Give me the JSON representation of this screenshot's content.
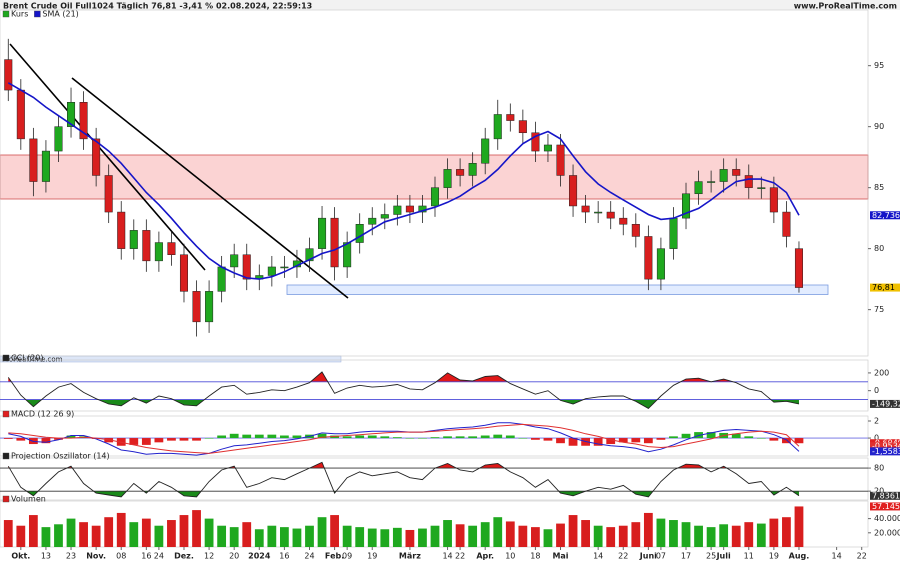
{
  "header": {
    "title": "Brent Crude Oil Full1024 Täglich 76,81 -3,41 % 02.08.2024, 22:59:13",
    "source": "www.ProRealTime.com"
  },
  "chart_data": [
    {
      "type": "candlestick",
      "watermark": "ProRealTime.com",
      "categories": [
        null,
        "Okt.",
        null,
        "13",
        null,
        "23",
        null,
        "Nov.",
        null,
        "08",
        null,
        "16",
        "24",
        null,
        "Dez.",
        null,
        "12",
        null,
        "20",
        null,
        "2024",
        null,
        "16",
        null,
        "24",
        null,
        "Feb.",
        "09",
        null,
        "19",
        null,
        null,
        "März",
        null,
        null,
        "14",
        "22",
        null,
        "Apr.",
        null,
        "10",
        null,
        "18",
        null,
        "Mai",
        null,
        null,
        "14",
        null,
        "22",
        null,
        "Juni",
        "07",
        null,
        "17",
        null,
        "25",
        "Juli",
        null,
        "11",
        null,
        "19",
        null,
        "Aug.",
        null,
        null,
        "14",
        null,
        "22"
      ],
      "ylim": [
        71.2,
        99.4
      ],
      "yticks": [
        95,
        90,
        85,
        80,
        75
      ],
      "series": [
        {
          "name": "Kurs",
          "up_color": "#1fa81f",
          "down_color": "#d81e1e",
          "open": [
            95.5,
            93,
            89,
            85.5,
            88,
            90,
            92,
            89,
            86,
            83,
            80,
            81.5,
            79,
            80.5,
            79.5,
            76.5,
            74,
            76.5,
            78.5,
            79.5,
            77.5,
            77.8,
            78.5,
            78.5,
            79,
            80,
            82.5,
            78.5,
            80.5,
            82,
            82.5,
            82.8,
            83.5,
            83,
            83.5,
            85,
            86.5,
            86,
            87,
            89,
            91,
            90.5,
            89.5,
            88,
            88.5,
            86,
            83.5,
            83,
            83,
            82.5,
            82,
            81,
            77.5,
            80,
            82.5,
            84.5,
            85.5,
            85.5,
            86.5,
            86,
            85,
            85,
            83,
            80,
            null,
            null,
            null,
            null,
            null
          ],
          "high": [
            97.2,
            93.9,
            89.9,
            88.9,
            90.9,
            93.2,
            92.9,
            89.9,
            86.9,
            83.9,
            82.4,
            82.4,
            81.4,
            81.4,
            80.4,
            77.4,
            77.4,
            79.4,
            80.4,
            80.4,
            78.7,
            79.4,
            79.4,
            79.9,
            80.9,
            83.5,
            83.4,
            81.4,
            82.9,
            83.4,
            83.7,
            84.4,
            84.4,
            84.4,
            85.9,
            87.4,
            87.4,
            87.9,
            89.9,
            92.2,
            91.9,
            91.4,
            90.4,
            89.4,
            89.4,
            86.9,
            84.4,
            83.9,
            83.9,
            83.4,
            82.9,
            81.9,
            80.9,
            83.4,
            85.4,
            86.4,
            86.4,
            87.4,
            87.4,
            86.9,
            85.9,
            85.9,
            83.9,
            80.6,
            null,
            null,
            null,
            null,
            null
          ],
          "low": [
            92.1,
            88.1,
            84.3,
            84.6,
            87.1,
            89.1,
            88.1,
            85.1,
            82.1,
            79.1,
            79.1,
            78.1,
            78.1,
            78.6,
            75.6,
            72.8,
            73.1,
            75.6,
            77.6,
            76.6,
            76.6,
            76.9,
            77.6,
            77.6,
            78.1,
            79.1,
            77.4,
            77.6,
            79.6,
            81.1,
            81.6,
            81.9,
            82.1,
            82.1,
            82.6,
            84.1,
            85.1,
            85.1,
            86.1,
            88.1,
            89.6,
            88.6,
            87.1,
            87.1,
            85.1,
            82.6,
            82.1,
            82.1,
            81.6,
            81.1,
            80.1,
            76.6,
            76.6,
            79.1,
            81.6,
            83.6,
            84.6,
            84.6,
            85.1,
            84.1,
            84.1,
            82.1,
            80.1,
            76.4,
            null,
            null,
            null,
            null,
            null
          ],
          "close": [
            93,
            89,
            85.5,
            88,
            90,
            92,
            89,
            86,
            83,
            80,
            81.5,
            79,
            80.5,
            79.5,
            76.5,
            74,
            76.5,
            78.5,
            79.5,
            77.5,
            77.8,
            78.5,
            78.5,
            79,
            80,
            82.5,
            78.5,
            80.5,
            82,
            82.5,
            82.8,
            83.5,
            83,
            83.5,
            85,
            86.5,
            86,
            87,
            89,
            91,
            90.5,
            89.5,
            88,
            88.5,
            86,
            83.5,
            83,
            83,
            82.5,
            82,
            81,
            77.5,
            80,
            82.5,
            84.5,
            85.5,
            85.5,
            86.5,
            86,
            85,
            85,
            83,
            81,
            76.81,
            null,
            null,
            null,
            null,
            null
          ]
        },
        {
          "name": "SMA (21)",
          "color": "#1515c8",
          "values": [
            93.6,
            93.0,
            92.4,
            91.6,
            90.9,
            90.2,
            89.5,
            88.8,
            88.0,
            87.0,
            85.8,
            84.6,
            83.6,
            82.5,
            81.3,
            80.2,
            79.2,
            78.5,
            78.0,
            77.6,
            77.5,
            77.7,
            78.1,
            78.6,
            79.1,
            79.6,
            79.9,
            80.4,
            81.0,
            81.6,
            82.2,
            82.5,
            82.8,
            83.1,
            83.4,
            83.8,
            84.3,
            85.0,
            85.6,
            86.5,
            87.6,
            88.6,
            89.2,
            89.6,
            89.0,
            87.6,
            86.3,
            85.3,
            84.6,
            84.0,
            83.4,
            82.8,
            82.4,
            82.5,
            82.9,
            83.3,
            84.0,
            84.8,
            85.5,
            85.7,
            85.7,
            85.4,
            84.6,
            82.736,
            null,
            null,
            null,
            null,
            null
          ]
        }
      ],
      "markers": [
        {
          "value": 82.736,
          "label": "82,736",
          "color": "#1515c8"
        },
        {
          "value": 76.81,
          "label": "76,81",
          "color": "#f0c000"
        }
      ]
    },
    {
      "type": "oscillator",
      "label": "CCI (20)",
      "ylim": [
        -229,
        323
      ],
      "yticks": [
        200,
        0
      ],
      "upper_level": 100,
      "lower_level": -100,
      "level_color": "#4a4ad8",
      "upper_color": "#e01818",
      "lower_color": "#1a8a1a",
      "color": "#222222",
      "values": [
        150,
        -50,
        -180,
        -60,
        40,
        80,
        -20,
        -90,
        -150,
        -170,
        -80,
        -140,
        -60,
        -90,
        -160,
        -170,
        -60,
        40,
        60,
        -40,
        -20,
        10,
        0,
        40,
        90,
        210,
        -30,
        30,
        60,
        40,
        50,
        70,
        20,
        10,
        90,
        200,
        120,
        110,
        160,
        170,
        80,
        20,
        -40,
        0,
        -110,
        -150,
        -90,
        -70,
        -60,
        -60,
        -120,
        -200,
        -60,
        60,
        130,
        140,
        100,
        130,
        90,
        20,
        -10,
        -130,
        -120,
        -149.32,
        null,
        null,
        null,
        null,
        null
      ],
      "markers": [
        {
          "value": -149.32,
          "label": "-149,32",
          "color": "#333333"
        }
      ]
    },
    {
      "type": "macd",
      "label": "MACD (12 26 9)",
      "ylim": [
        -2.1,
        2.35
      ],
      "yticks": [
        2,
        0
      ],
      "up_color": "#22b022",
      "down_color": "#e02020",
      "series": [
        {
          "color": "#2222cc",
          "values": [
            0.5,
            0.2,
            -0.4,
            -0.5,
            -0.2,
            0.3,
            0.3,
            -0.1,
            -0.7,
            -1.4,
            -1.6,
            -1.9,
            -1.8,
            -1.8,
            -1.9,
            -2.0,
            -1.8,
            -1.3,
            -0.9,
            -0.8,
            -0.6,
            -0.4,
            -0.3,
            -0.1,
            0.2,
            0.6,
            0.5,
            0.5,
            0.7,
            0.8,
            0.8,
            0.8,
            0.7,
            0.7,
            0.9,
            1.1,
            1.2,
            1.3,
            1.5,
            1.8,
            1.8,
            1.6,
            1.3,
            1.1,
            0.6,
            0.0,
            -0.4,
            -0.7,
            -0.9,
            -1.0,
            -1.2,
            -1.6,
            -1.3,
            -0.8,
            -0.2,
            0.3,
            0.6,
            0.9,
            1.0,
            0.9,
            0.8,
            0.4,
            -0.2,
            -1.5583,
            null,
            null,
            null,
            null,
            null
          ]
        },
        {
          "color": "#e03030",
          "values": [
            0.6,
            0.5,
            0.3,
            0.1,
            0.0,
            0.0,
            0.1,
            0.0,
            -0.2,
            -0.5,
            -0.8,
            -1.1,
            -1.3,
            -1.5,
            -1.6,
            -1.7,
            -1.8,
            -1.6,
            -1.4,
            -1.2,
            -1.0,
            -0.8,
            -0.6,
            -0.4,
            -0.2,
            0.1,
            0.2,
            0.3,
            0.4,
            0.5,
            0.6,
            0.7,
            0.7,
            0.7,
            0.8,
            0.9,
            1.0,
            1.1,
            1.2,
            1.4,
            1.5,
            1.6,
            1.5,
            1.4,
            1.2,
            0.9,
            0.5,
            0.2,
            -0.2,
            -0.5,
            -0.7,
            -1.0,
            -1.1,
            -1.0,
            -0.7,
            -0.4,
            -0.1,
            0.3,
            0.5,
            0.7,
            0.8,
            0.7,
            0.4,
            -0.9534,
            null,
            null,
            null,
            null,
            null
          ]
        }
      ],
      "histogram": [
        -0.1,
        -0.3,
        -0.7,
        -0.6,
        -0.2,
        0.3,
        0.2,
        -0.1,
        -0.5,
        -0.9,
        -0.8,
        -0.8,
        -0.5,
        -0.3,
        -0.3,
        -0.3,
        0.0,
        0.3,
        0.5,
        0.4,
        0.4,
        0.4,
        0.3,
        0.3,
        0.4,
        0.5,
        0.3,
        0.2,
        0.3,
        0.3,
        0.2,
        0.1,
        0.0,
        0.0,
        0.1,
        0.2,
        0.2,
        0.2,
        0.3,
        0.4,
        0.3,
        0.0,
        -0.2,
        -0.3,
        -0.6,
        -0.9,
        -0.9,
        -0.9,
        -0.7,
        -0.5,
        -0.5,
        -0.6,
        -0.2,
        0.2,
        0.5,
        0.7,
        0.7,
        0.6,
        0.5,
        0.2,
        0.0,
        -0.3,
        -0.6,
        -0.6049,
        null,
        null,
        null,
        null,
        null
      ],
      "markers": [
        {
          "value": -0.6049,
          "label": "-0,6049",
          "color": "#e02020"
        },
        {
          "value": -0.9534,
          "label": "-0,9534",
          "color": "#e03030"
        },
        {
          "value": -1.5583,
          "label": "-1,5583",
          "color": "#2222cc"
        }
      ]
    },
    {
      "type": "oscillator",
      "label": "Projection Oszillator (14)",
      "ylim": [
        -3,
        101
      ],
      "yticks": [
        80,
        20
      ],
      "upper_level": 80,
      "lower_level": 20,
      "level_color": "#333333",
      "upper_color": "#e01818",
      "lower_color": "#1a8a1a",
      "color": "#222222",
      "values": [
        85,
        30,
        8,
        40,
        70,
        85,
        40,
        15,
        10,
        5,
        40,
        15,
        45,
        30,
        8,
        5,
        45,
        75,
        85,
        30,
        40,
        55,
        50,
        65,
        80,
        95,
        15,
        55,
        70,
        60,
        65,
        70,
        55,
        50,
        80,
        92,
        75,
        70,
        88,
        92,
        70,
        55,
        30,
        50,
        15,
        8,
        20,
        30,
        25,
        35,
        12,
        5,
        45,
        75,
        90,
        88,
        70,
        85,
        65,
        40,
        45,
        10,
        30,
        7.8361,
        null,
        null,
        null,
        null,
        null
      ],
      "markers": [
        {
          "value": 7.8361,
          "label": "7,8361",
          "color": "#333333"
        }
      ]
    },
    {
      "type": "volume",
      "label": "Volumen",
      "ylim": [
        0,
        62000
      ],
      "yticks": [
        {
          "value": 40000,
          "label": "40.000"
        },
        {
          "value": 20000,
          "label": "20.000"
        }
      ],
      "values": [
        38000,
        30000,
        45000,
        28000,
        32000,
        40000,
        35000,
        30000,
        42000,
        48000,
        35000,
        40000,
        30000,
        38000,
        45000,
        52000,
        40000,
        30000,
        28000,
        35000,
        25000,
        30000,
        28000,
        26000,
        30000,
        42000,
        45000,
        30000,
        28000,
        26000,
        25000,
        27000,
        24000,
        26000,
        30000,
        38000,
        32000,
        30000,
        35000,
        42000,
        36000,
        30000,
        28000,
        25000,
        33000,
        45000,
        38000,
        30000,
        28000,
        30000,
        35000,
        48000,
        40000,
        38000,
        35000,
        30000,
        28000,
        32000,
        30000,
        35000,
        33000,
        40000,
        42000,
        57145,
        null,
        null,
        null,
        null,
        null
      ],
      "markers": [
        {
          "value": 57145,
          "label": "57.145",
          "color": "#e02020"
        }
      ]
    }
  ]
}
